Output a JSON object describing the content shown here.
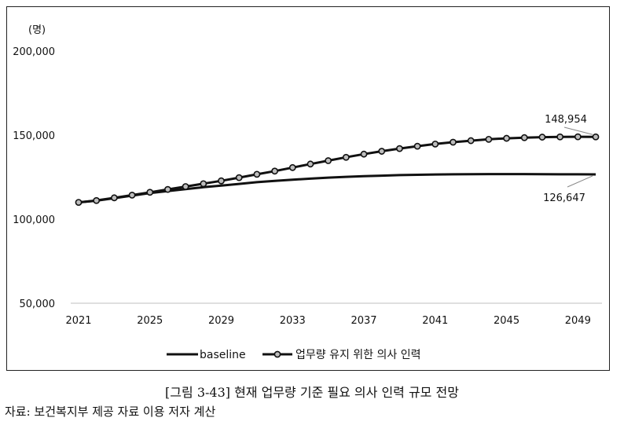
{
  "chart_data": {
    "type": "line",
    "unit_label": "(명)",
    "title": "",
    "xlabel": "",
    "ylabel": "",
    "x": [
      2021,
      2022,
      2023,
      2024,
      2025,
      2026,
      2027,
      2028,
      2029,
      2030,
      2031,
      2032,
      2033,
      2034,
      2035,
      2036,
      2037,
      2038,
      2039,
      2040,
      2041,
      2042,
      2043,
      2044,
      2045,
      2046,
      2047,
      2048,
      2049,
      2050
    ],
    "x_ticks": [
      "2021",
      "2025",
      "2029",
      "2033",
      "2037",
      "2041",
      "2045",
      "2049"
    ],
    "x_tick_values": [
      2021,
      2025,
      2029,
      2033,
      2037,
      2041,
      2045,
      2049
    ],
    "y_ticks": [
      "200,000",
      "150,000",
      "100,000",
      "50,000"
    ],
    "y_tick_values": [
      200000,
      150000,
      100000,
      50000
    ],
    "ylim": [
      50000,
      200000
    ],
    "xlim": [
      2021,
      2050
    ],
    "grid": false,
    "legend_position": "bottom",
    "series": [
      {
        "name": "baseline",
        "marker": false,
        "values": [
          110000,
          111000,
          112500,
          114000,
          115500,
          116700,
          117900,
          119000,
          120000,
          121000,
          122000,
          122800,
          123500,
          124100,
          124700,
          125200,
          125600,
          125900,
          126200,
          126400,
          126600,
          126700,
          126750,
          126800,
          126800,
          126800,
          126750,
          126700,
          126670,
          126647
        ]
      },
      {
        "name": "업무량 유지 위한 의사 인력",
        "marker": true,
        "values": [
          110000,
          111100,
          112700,
          114300,
          116000,
          117700,
          119400,
          121100,
          122800,
          124700,
          126700,
          128600,
          130700,
          132800,
          134800,
          136800,
          138700,
          140400,
          142000,
          143400,
          144700,
          145800,
          146700,
          147500,
          148100,
          148500,
          148800,
          148950,
          149000,
          148954
        ]
      }
    ],
    "annotations": [
      {
        "text": "148,954",
        "x": 2050,
        "y": 148954
      },
      {
        "text": "126,647",
        "x": 2050,
        "y": 126647
      }
    ]
  },
  "caption": "[그림 3-43] 현재 업무량 기준 필요 의사 인력 규모 전망",
  "source": "자료: 보건복지부 제공 자료 이용 저자 계산",
  "colors": {
    "line": "#111111",
    "axis": "#bfbfbf",
    "marker_fill": "#bdbdbd"
  }
}
